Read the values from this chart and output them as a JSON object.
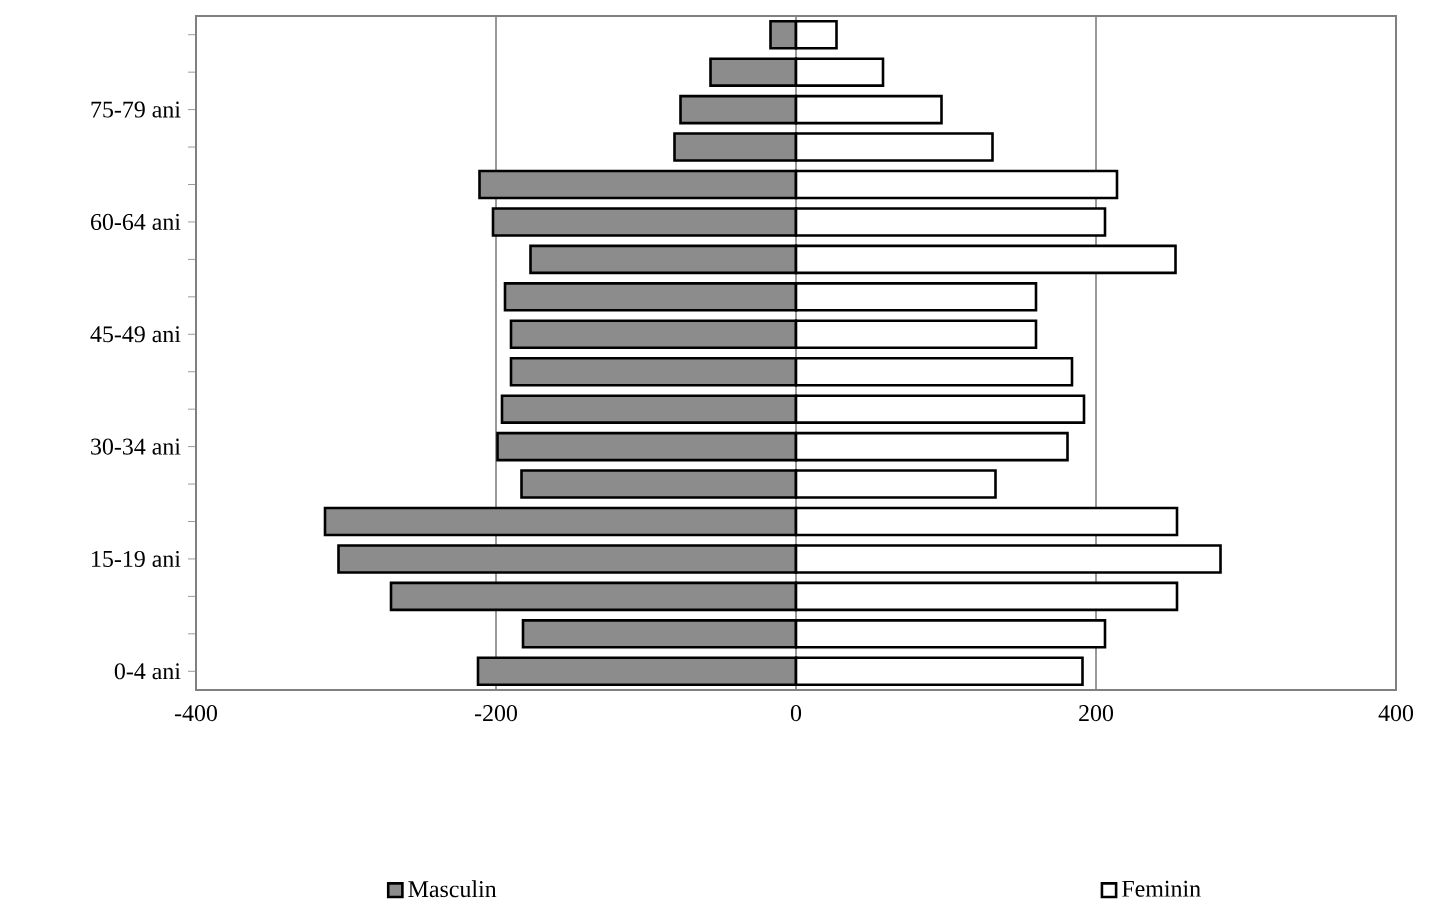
{
  "chart_data": {
    "type": "bar",
    "orientation": "horizontal",
    "categories": [
      null,
      null,
      "75-79 ani",
      null,
      null,
      "60-64 ani",
      null,
      null,
      "45-49 ani",
      null,
      null,
      "30-34 ani",
      null,
      null,
      "15-19 ani",
      null,
      null,
      "0-4 ani"
    ],
    "series": [
      {
        "name": "Masculin",
        "color": "#8c8c8c",
        "values": [
          -17,
          -57,
          -77,
          -81,
          -211,
          -202,
          -177,
          -194,
          -190,
          -190,
          -196,
          -199,
          -183,
          -314,
          -305,
          -270,
          -182,
          -212
        ]
      },
      {
        "name": "Feminin",
        "color": "#ffffff",
        "values": [
          27,
          58,
          97,
          131,
          214,
          206,
          253,
          160,
          160,
          184,
          192,
          181,
          133,
          254,
          283,
          254,
          206,
          191
        ]
      }
    ],
    "xlim": [
      -400,
      400
    ],
    "xticks": [
      -400,
      -200,
      0,
      200,
      400
    ],
    "stacked": true,
    "grid": "x",
    "legend": "bottom"
  }
}
